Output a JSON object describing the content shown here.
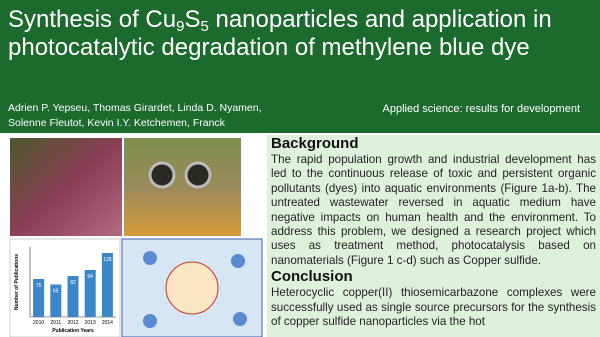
{
  "header": {
    "title_parts": [
      "Synthesis of Cu",
      "9",
      "S",
      "5",
      " nanoparticles and application in photocatalytic degradation of methylene blue dye"
    ],
    "authors": [
      "Adrien P. Yepseu, Thomas Girardet, Linda D. Nyamen,",
      "Solenne Fleutot, Kevin I.Y. Ketchemen, Franck"
    ],
    "tagline": "Applied science: results for development"
  },
  "figure_chart": {
    "type": "bar",
    "categories": [
      "2010",
      "2011",
      "2012",
      "2013",
      "2014"
    ],
    "values": [
      76,
      65,
      82,
      94,
      128
    ],
    "color": "#3a86c8",
    "ylim": [
      0,
      140
    ],
    "x_label": "Publication Years",
    "y_label": "Number of Publications"
  },
  "sections": [
    {
      "heading": "Background",
      "body": "The rapid population growth and industrial development has led to the continuous release of toxic and persistent organic pollutants (dyes) into aquatic environments (Figure 1a-b). The untreated wastewater reversed in aquatic medium have negative impacts on human health and the environment. To address this problem, we designed a research project which uses as treatment method, photocatalysis based on nanomaterials (Figure 1 c-d) such as Copper sulfide."
    },
    {
      "heading": "Conclusion",
      "body": "Heterocyclic copper(II) thiosemicarbazone complexes were successfully used as single source precursors for the synthesis of copper sulfide nanoparticles via the hot"
    }
  ]
}
